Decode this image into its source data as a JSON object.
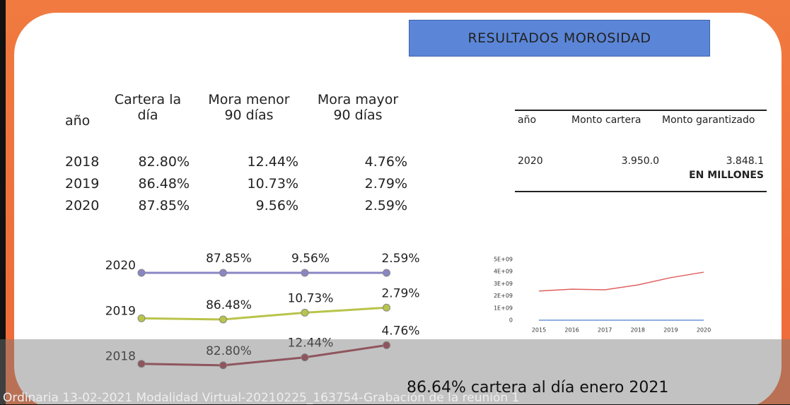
{
  "title": "RESULTADOS MOROSIDAD",
  "table_left": {
    "header": [
      "año",
      "Cartera la día",
      "Mora menor 90 días",
      "Mora mayor 90 días"
    ],
    "rows": [
      [
        "2018",
        "82.80%",
        "12.44%",
        "4.76%"
      ],
      [
        "2019",
        "86.48%",
        "10.73%",
        "2.79%"
      ],
      [
        "2020",
        "87.85%",
        "9.56%",
        "2.59%"
      ]
    ]
  },
  "table_right": {
    "header": [
      "año",
      "Monto cartera",
      "Monto garantizado"
    ],
    "rows": [
      [
        "2020",
        "3.950.0",
        "3.848.1"
      ]
    ],
    "note": "EN MILLONES"
  },
  "chart_data": [
    {
      "type": "line",
      "stacked": "percent",
      "series": [
        {
          "color": "#a33a4a",
          "values": [
            2018,
            82.8,
            12.44,
            4.76
          ],
          "value_labels": [
            "2018",
            "82.80%",
            "12.44%",
            "4.76%"
          ]
        },
        {
          "color": "#b8c44a",
          "values": [
            2019,
            86.48,
            10.73,
            2.79
          ],
          "value_labels": [
            "2019",
            "86.48%",
            "10.73%",
            "2.79%"
          ]
        },
        {
          "color": "#8a86c4",
          "values": [
            2020,
            87.85,
            9.56,
            2.59
          ],
          "value_labels": [
            "2020",
            "87.85%",
            "9.56%",
            "2.59%"
          ]
        }
      ]
    },
    {
      "type": "line",
      "categories": [
        "2015",
        "2016",
        "2017",
        "2018",
        "2019",
        "2020"
      ],
      "series": [
        {
          "color": "#e06060",
          "values": [
            2400000000,
            2550000000,
            2500000000,
            2900000000,
            3500000000,
            3950000000
          ]
        },
        {
          "color": "#6a96d8",
          "values": [
            0,
            0,
            0,
            0,
            0,
            0
          ]
        }
      ],
      "ylim": [
        0,
        5000000000
      ],
      "yticks": [
        0,
        {
          "value": 1000000000,
          "label": "1E+09"
        },
        {
          "value": 2000000000,
          "label": "2E+09"
        },
        {
          "value": 3000000000,
          "label": "3E+09"
        },
        {
          "value": 4000000000,
          "label": "4E+09"
        },
        {
          "value": 5000000000,
          "label": "5E+09"
        }
      ]
    }
  ],
  "caption": "86.64% cartera al día enero 2021",
  "recording": "Ordinaria 13-02-2021 Modalidad Virtual-20210225_163754-Grabación de la reunión 1"
}
